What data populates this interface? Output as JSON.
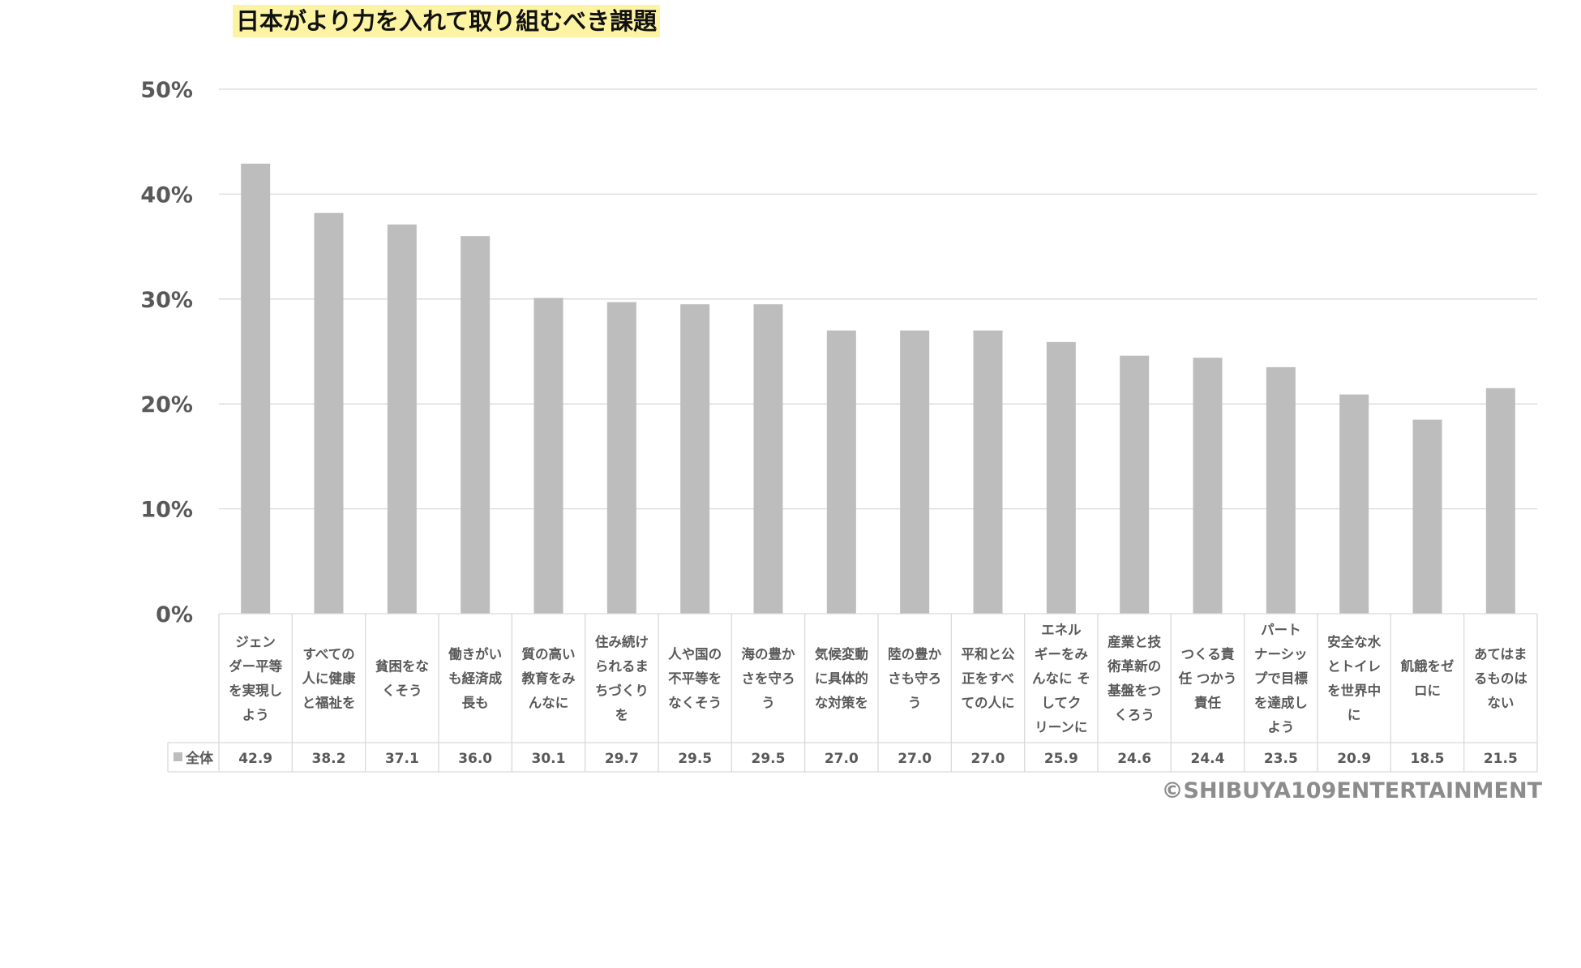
{
  "title": "日本がより力を入れて取り組むべき課題",
  "copyright": "©SHIBUYA109ENTERTAINMENT",
  "colors": {
    "bar": "#bdbdbd",
    "grid": "#d9d9d9",
    "axis_text": "#595959",
    "title_bg": "#fcf4a3"
  },
  "chart_data": {
    "type": "bar",
    "title": "日本がより力を入れて取り組むべき課題",
    "xlabel": "",
    "ylabel": "",
    "ylim": [
      0,
      50
    ],
    "ytick_values": [
      0,
      10,
      20,
      30,
      40,
      50
    ],
    "ytick_labels": [
      "0%",
      "10%",
      "20%",
      "30%",
      "40%",
      "50%"
    ],
    "grid": true,
    "legend": "data-table",
    "categories": [
      [
        "ジェン",
        "ダー平等",
        "を実現し",
        "よう"
      ],
      [
        "すべての",
        "人に健康",
        "と福祉を"
      ],
      [
        "貧困をな",
        "くそう"
      ],
      [
        "働きがい",
        "も経済成",
        "長も"
      ],
      [
        "質の高い",
        "教育をみ",
        "んなに"
      ],
      [
        "住み続け",
        "られるま",
        "ちづくり",
        "を"
      ],
      [
        "人や国の",
        "不平等を",
        "なくそう"
      ],
      [
        "海の豊か",
        "さを守ろ",
        "う"
      ],
      [
        "気候変動",
        "に具体的",
        "な対策を"
      ],
      [
        "陸の豊か",
        "さも守ろ",
        "う"
      ],
      [
        "平和と公",
        "正をすべ",
        "ての人に"
      ],
      [
        "エネル",
        "ギーをみ",
        "んなに そ",
        "してク",
        "リーンに"
      ],
      [
        "産業と技",
        "術革新の",
        "基盤をつ",
        "くろう"
      ],
      [
        "つくる責",
        "任 つかう",
        "責任"
      ],
      [
        "パート",
        "ナーシッ",
        "プで目標",
        "を達成し",
        "よう"
      ],
      [
        "安全な水",
        "とトイレ",
        "を世界中",
        "に"
      ],
      [
        "飢餓をゼ",
        "ロに"
      ],
      [
        "あてはま",
        "るものは",
        "ない"
      ]
    ],
    "series": [
      {
        "name": "全体",
        "values": [
          42.9,
          38.2,
          37.1,
          36.0,
          30.1,
          29.7,
          29.5,
          29.5,
          27.0,
          27.0,
          27.0,
          25.9,
          24.6,
          24.4,
          23.5,
          20.9,
          18.5,
          21.5
        ],
        "value_labels": [
          "42.9",
          "38.2",
          "37.1",
          "36.0",
          "30.1",
          "29.7",
          "29.5",
          "29.5",
          "27.0",
          "27.0",
          "27.0",
          "25.9",
          "24.6",
          "24.4",
          "23.5",
          "20.9",
          "18.5",
          "21.5"
        ]
      }
    ]
  }
}
